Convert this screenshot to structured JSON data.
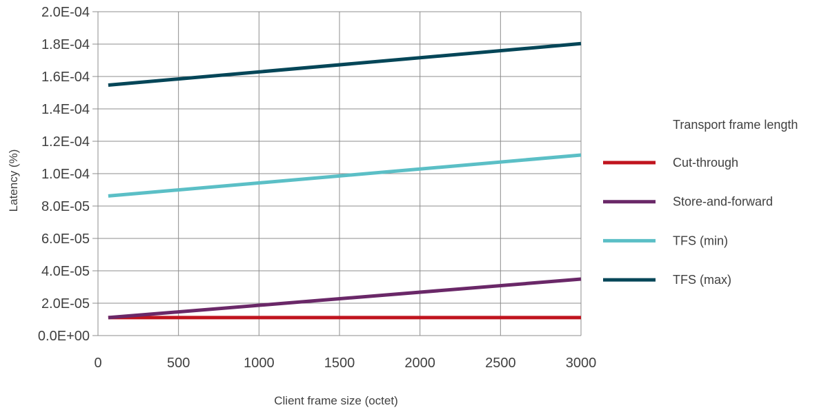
{
  "chart_data": {
    "type": "line",
    "title": "",
    "xlabel": "Client frame size (octet)",
    "ylabel": "Latency (%)",
    "xlim": [
      0,
      3000
    ],
    "ylim": [
      0,
      0.0002
    ],
    "x_ticks": [
      0,
      500,
      1000,
      1500,
      2000,
      2500,
      3000
    ],
    "x_tick_labels": [
      "0",
      "500",
      "1000",
      "1500",
      "2000",
      "2500",
      "3000"
    ],
    "y_ticks": [
      0,
      2e-05,
      4e-05,
      6e-05,
      8e-05,
      0.0001,
      0.00012,
      0.00014,
      0.00016,
      0.00018,
      0.0002
    ],
    "y_tick_labels": [
      "0.0E+00",
      "2.0E-05",
      "4.0E-05",
      "6.0E-05",
      "8.0E-05",
      "1.0E-04",
      "1.2E-04",
      "1.4E-04",
      "1.6E-04",
      "1.8E-04",
      "2.0E-04"
    ],
    "grid": true,
    "legend_title": "Transport frame length",
    "legend_position": "right",
    "series": [
      {
        "name": "Cut-through",
        "color": "#c0141e",
        "x": [
          64,
          3000
        ],
        "y": [
          1.11e-05,
          1.11e-05
        ]
      },
      {
        "name": "Store-and-forward",
        "color": "#6a2868",
        "x": [
          64,
          3000
        ],
        "y": [
          1.11e-05,
          3.49e-05
        ]
      },
      {
        "name": "TFS (min)",
        "color": "#5bbfc6",
        "x": [
          64,
          3000
        ],
        "y": [
          8.62e-05,
          0.0001115
        ]
      },
      {
        "name": "TFS (max)",
        "color": "#054658",
        "x": [
          64,
          3000
        ],
        "y": [
          0.0001547,
          0.0001803
        ]
      }
    ]
  }
}
